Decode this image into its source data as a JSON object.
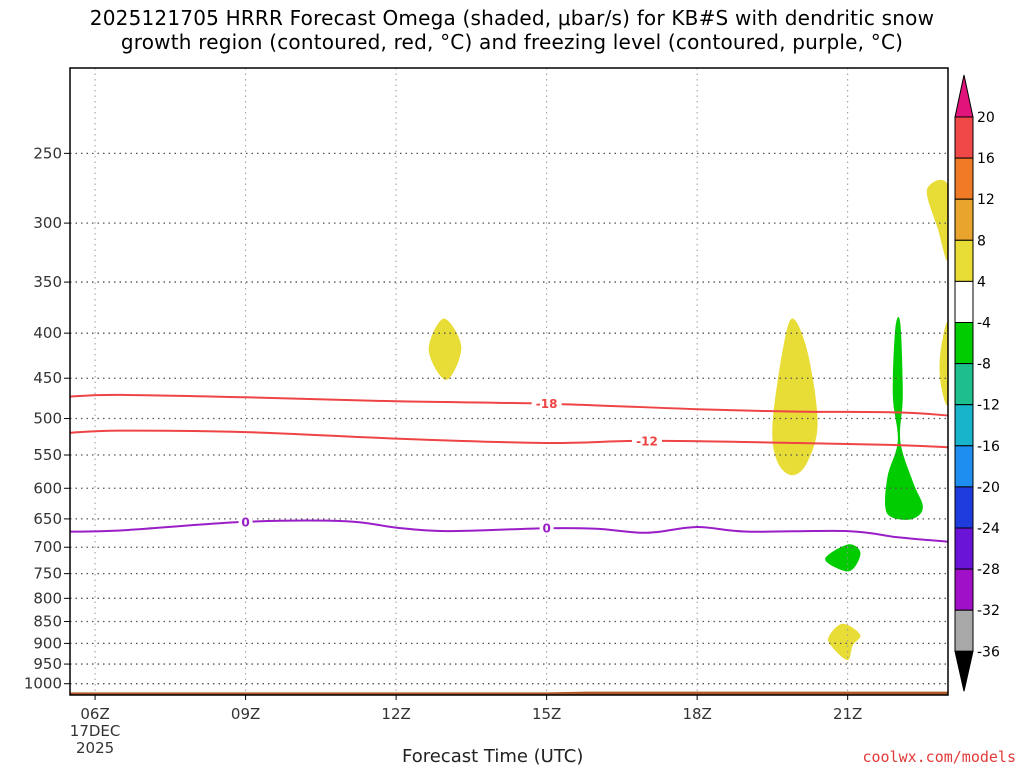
{
  "title": {
    "line1": "2025121705 HRRR Forecast Omega (shaded, μbar/s) for KB#S with dendritic snow",
    "line2": "growth region (contoured, red, °C) and freezing level (contoured, purple, °C)"
  },
  "x_axis_title": "Forecast Time (UTC)",
  "credit": "coolwx.com/models",
  "chart_data": {
    "type": "heatmap",
    "x_ticks": [
      {
        "hour": 6,
        "label": "06Z",
        "sub": [
          "17DEC",
          "2025"
        ]
      },
      {
        "hour": 9,
        "label": "09Z"
      },
      {
        "hour": 12,
        "label": "12Z"
      },
      {
        "hour": 15,
        "label": "15Z"
      },
      {
        "hour": 18,
        "label": "18Z"
      },
      {
        "hour": 21,
        "label": "21Z"
      }
    ],
    "xlim": [
      5.5,
      23.0
    ],
    "y_scale": "log pressure (inverted)",
    "ylim_hpa": [
      1030,
      200
    ],
    "y_ticks": [
      250,
      300,
      350,
      400,
      450,
      500,
      550,
      600,
      650,
      700,
      750,
      800,
      850,
      900,
      950,
      1000
    ],
    "grid": "dotted",
    "colorbar": {
      "labels": [
        "20",
        "16",
        "12",
        "8",
        "4",
        "-4",
        "-8",
        "-12",
        "-16",
        "-20",
        "-24",
        "-28",
        "-32",
        "-36"
      ],
      "bands": [
        {
          "lo": 16,
          "hi": 20,
          "color": "#f04848"
        },
        {
          "lo": 12,
          "hi": 16,
          "color": "#f07a26"
        },
        {
          "lo": 8,
          "hi": 12,
          "color": "#e8a42c"
        },
        {
          "lo": 4,
          "hi": 8,
          "color": "#e8dc36"
        },
        {
          "lo": -4,
          "hi": 4,
          "color": "#ffffff"
        },
        {
          "lo": -8,
          "hi": -4,
          "color": "#00cc00"
        },
        {
          "lo": -12,
          "hi": -8,
          "color": "#1ebf8e"
        },
        {
          "lo": -16,
          "hi": -12,
          "color": "#18b4cc"
        },
        {
          "lo": -20,
          "hi": -16,
          "color": "#1e8ef0"
        },
        {
          "lo": -24,
          "hi": -20,
          "color": "#1e3cdc"
        },
        {
          "lo": -28,
          "hi": -24,
          "color": "#6a14d8"
        },
        {
          "lo": -32,
          "hi": -28,
          "color": "#a010c8"
        },
        {
          "lo": -36,
          "hi": -32,
          "color": "#a8a8a8"
        }
      ],
      "top_arrow_color": "#e0147a",
      "bottom_arrow_color": "#000000"
    },
    "contours": [
      {
        "name": "-18",
        "color": "#ee4444",
        "label_hour": 15.0,
        "points": [
          [
            5.5,
            472
          ],
          [
            6.5,
            470
          ],
          [
            9,
            473
          ],
          [
            12,
            478
          ],
          [
            15,
            481
          ],
          [
            18,
            488
          ],
          [
            20,
            491
          ],
          [
            22,
            492
          ],
          [
            23,
            496
          ]
        ]
      },
      {
        "name": "-12",
        "color": "#ee4444",
        "label_hour": 17.0,
        "points": [
          [
            5.5,
            519
          ],
          [
            6.5,
            516
          ],
          [
            9,
            518
          ],
          [
            12,
            527
          ],
          [
            15,
            533
          ],
          [
            17,
            530
          ],
          [
            20,
            533
          ],
          [
            22,
            536
          ],
          [
            23,
            539
          ]
        ]
      },
      {
        "name": "0",
        "color": "#9a1ec8",
        "label_hour": 9.0,
        "label_hour2": 15.0,
        "points": [
          [
            5.5,
            672
          ],
          [
            6.5,
            670
          ],
          [
            9,
            655
          ],
          [
            11,
            654
          ],
          [
            12,
            665
          ],
          [
            13,
            671
          ],
          [
            15,
            666
          ],
          [
            16,
            667
          ],
          [
            17,
            674
          ],
          [
            18,
            664
          ],
          [
            19,
            672
          ],
          [
            21,
            671
          ],
          [
            22,
            682
          ],
          [
            23,
            690
          ]
        ]
      }
    ],
    "shaded_regions": [
      {
        "omega": "4 to 8",
        "color": "#e8dc36",
        "points": [
          [
            12.65,
            418
          ],
          [
            12.95,
            385
          ],
          [
            13.3,
            415
          ],
          [
            13.0,
            452
          ]
        ]
      },
      {
        "omega": "4 to 8",
        "color": "#e8dc36",
        "points": [
          [
            19.5,
            510
          ],
          [
            19.7,
            420
          ],
          [
            19.9,
            385
          ],
          [
            20.2,
            420
          ],
          [
            20.4,
            505
          ],
          [
            20.2,
            560
          ],
          [
            19.9,
            580
          ],
          [
            19.6,
            560
          ]
        ]
      },
      {
        "omega": "4 to 8",
        "color": "#e8dc36",
        "points": [
          [
            22.58,
            275
          ],
          [
            23.0,
            272
          ],
          [
            23.0,
            330
          ],
          [
            22.8,
            305
          ]
        ]
      },
      {
        "omega": "4 to 8",
        "color": "#e8dc36",
        "points": [
          [
            22.85,
            420
          ],
          [
            23.0,
            390
          ],
          [
            23.0,
            480
          ],
          [
            22.85,
            455
          ]
        ]
      },
      {
        "omega": "4 to 8",
        "color": "#e8dc36",
        "points": [
          [
            20.62,
            885
          ],
          [
            20.9,
            855
          ],
          [
            21.25,
            880
          ],
          [
            21.1,
            905
          ],
          [
            21.0,
            940
          ],
          [
            20.7,
            910
          ]
        ]
      },
      {
        "omega": "-4 to -8",
        "color": "#00cc00",
        "points": [
          [
            21.8,
            580
          ],
          [
            22.0,
            530
          ],
          [
            21.9,
            470
          ],
          [
            21.95,
            395
          ],
          [
            22.05,
            390
          ],
          [
            22.1,
            470
          ],
          [
            22.05,
            530
          ],
          [
            22.3,
            590
          ],
          [
            22.5,
            630
          ],
          [
            22.3,
            650
          ],
          [
            21.9,
            648
          ],
          [
            21.75,
            630
          ]
        ]
      },
      {
        "omega": "-4 to -8",
        "color": "#00cc00",
        "points": [
          [
            20.55,
            722
          ],
          [
            21.0,
            695
          ],
          [
            21.25,
            708
          ],
          [
            21.15,
            736
          ],
          [
            20.95,
            745
          ]
        ]
      }
    ],
    "terrain": {
      "color": "#b05a2a",
      "points": [
        [
          5.5,
          1023
        ],
        [
          15.0,
          1023
        ],
        [
          15.8,
          1021
        ],
        [
          23.0,
          1021
        ]
      ]
    }
  }
}
